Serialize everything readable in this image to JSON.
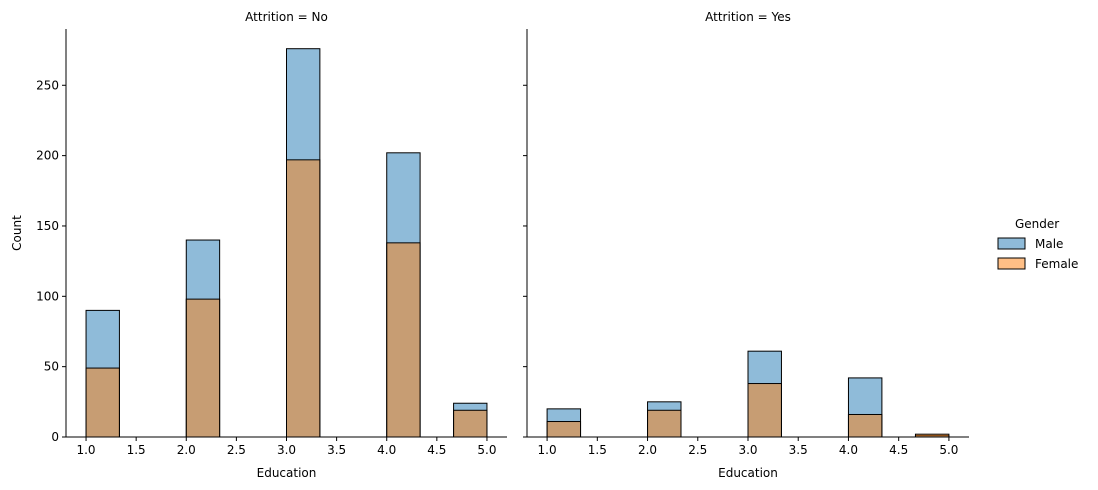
{
  "chart_data": {
    "type": "bar",
    "kind": "overlaid histogram facets",
    "xlabel": "Education",
    "ylabel": "Count",
    "shared_y": true,
    "xlim": [
      0.8,
      5.2
    ],
    "ylim": [
      0,
      290
    ],
    "xticks": [
      "1.0",
      "1.5",
      "2.0",
      "2.5",
      "3.0",
      "3.5",
      "4.0",
      "4.5",
      "5.0"
    ],
    "yticks": [
      "0",
      "50",
      "100",
      "150",
      "200",
      "250"
    ],
    "bin_edges": [
      1.0,
      1.333,
      1.667,
      2.0,
      2.333,
      2.667,
      3.0,
      3.333,
      3.667,
      4.0,
      4.333,
      4.667,
      5.0
    ],
    "legend": {
      "title": "Gender",
      "placement": "right",
      "entries": [
        {
          "label": "Male",
          "color": "#1f77b4"
        },
        {
          "label": "Female",
          "color": "#ff7f0e"
        }
      ]
    },
    "facets": [
      {
        "title": "Attrition = No",
        "series": [
          {
            "name": "Male",
            "values": [
              90,
              0,
              0,
              140,
              0,
              0,
              276,
              0,
              0,
              202,
              0,
              24
            ]
          },
          {
            "name": "Female",
            "values": [
              49,
              0,
              0,
              98,
              0,
              0,
              197,
              0,
              0,
              138,
              0,
              19
            ]
          }
        ]
      },
      {
        "title": "Attrition = Yes",
        "series": [
          {
            "name": "Male",
            "values": [
              20,
              0,
              0,
              25,
              0,
              0,
              61,
              0,
              0,
              42,
              0,
              1
            ]
          },
          {
            "name": "Female",
            "values": [
              11,
              0,
              0,
              19,
              0,
              0,
              38,
              0,
              0,
              16,
              0,
              2
            ]
          }
        ]
      }
    ]
  }
}
